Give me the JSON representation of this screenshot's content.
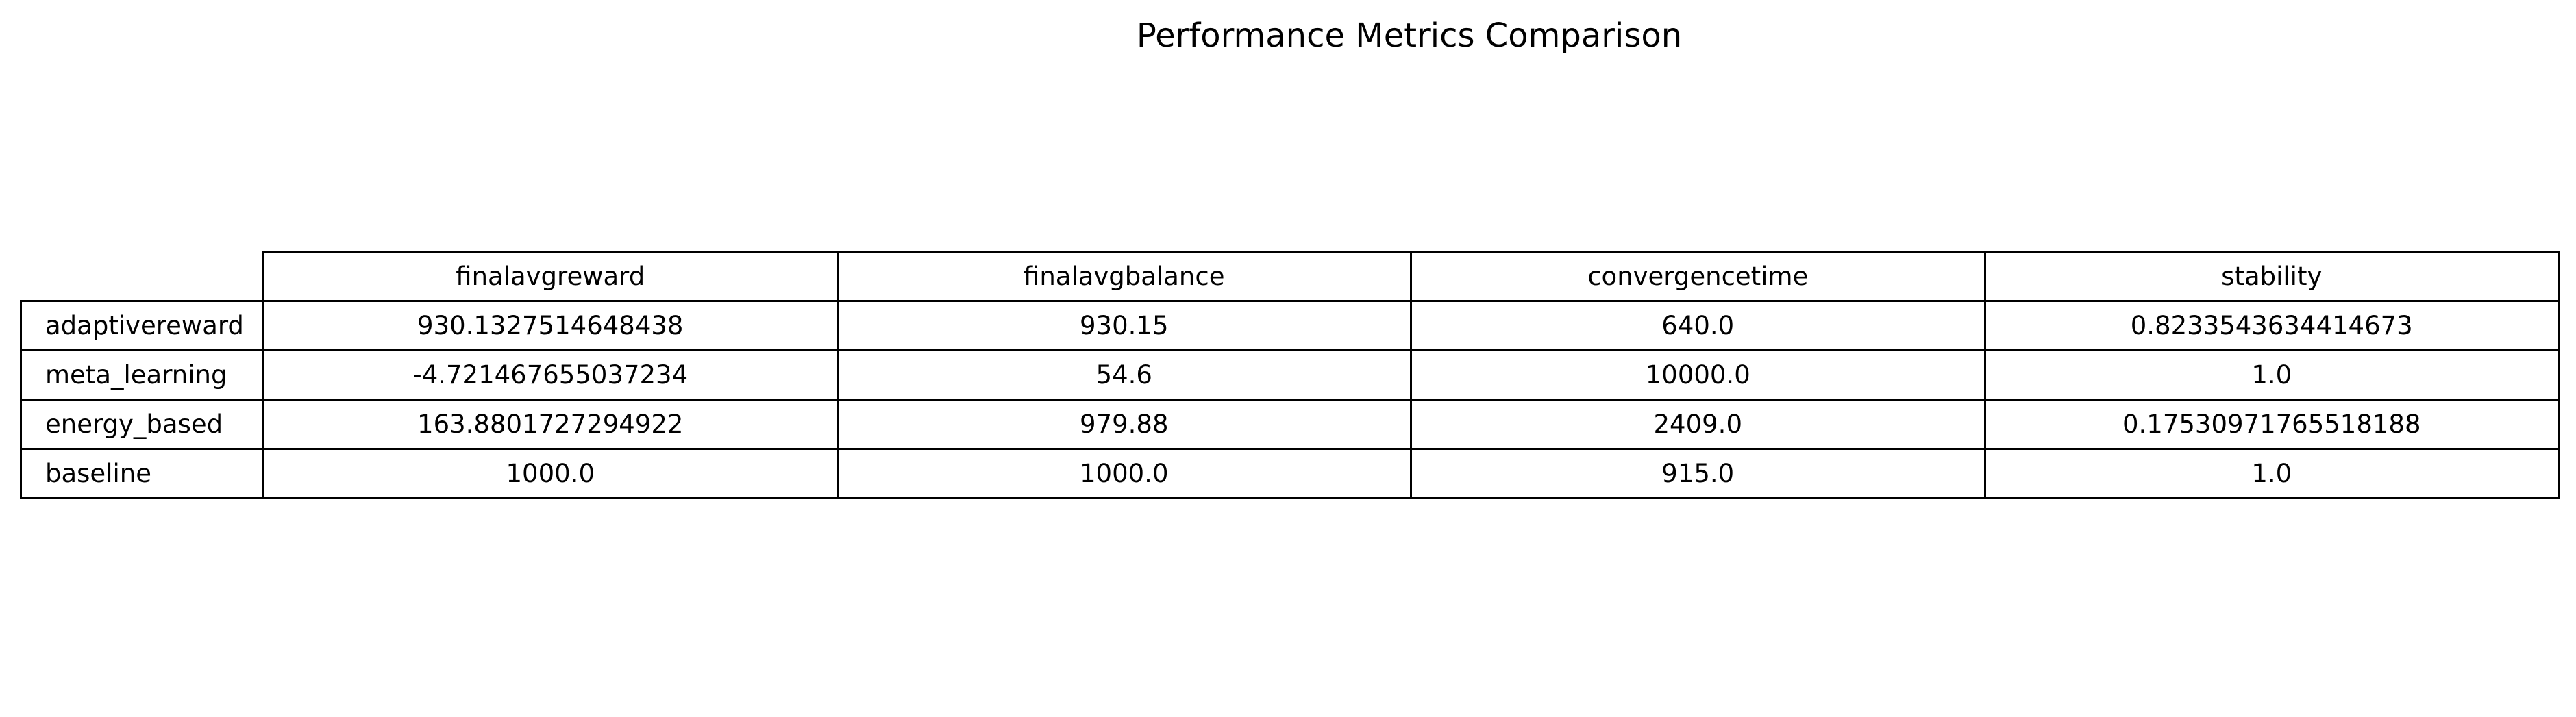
{
  "chart_data": {
    "type": "table",
    "title": "Performance Metrics Comparison",
    "columns": [
      "finalavgreward",
      "finalavgbalance",
      "convergencetime",
      "stability"
    ],
    "rows": [
      {
        "label": "adaptivereward",
        "cells": [
          "930.1327514648438",
          "930.15",
          "640.0",
          "0.8233543634414673"
        ]
      },
      {
        "label": "meta_learning",
        "cells": [
          "-4.721467655037234",
          "54.6",
          "10000.0",
          "1.0"
        ]
      },
      {
        "label": "energy_based",
        "cells": [
          "163.8801727294922",
          "979.88",
          "2409.0",
          "0.17530971765518188"
        ]
      },
      {
        "label": "baseline",
        "cells": [
          "1000.0",
          "1000.0",
          "915.0",
          "1.0"
        ]
      }
    ]
  }
}
